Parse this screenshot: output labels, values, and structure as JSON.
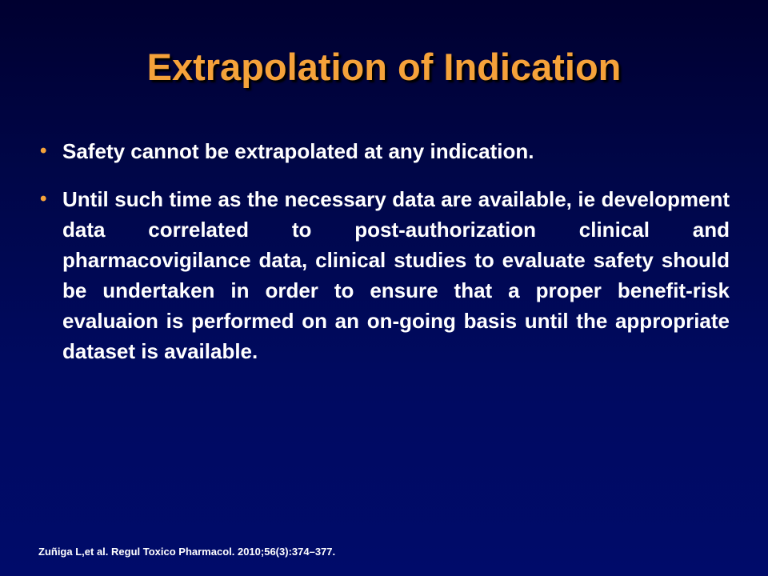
{
  "slide": {
    "title": "Extrapolation of Indication",
    "bullets": [
      {
        "text": "Safety cannot be extrapolated at any indication."
      },
      {
        "text": "Until such time as the necessary data are available, ie development data correlated to post-authorization clinical and pharmacovigilance data, clinical studies to evaluate safety should be undertaken in order to ensure that a proper benefit-risk evaluaion is performed on an on-going basis until the appropriate dataset is available."
      }
    ],
    "bullet_symbol": "•",
    "citation": "Zuñiga L,et al. Regul Toxico Pharmacol. 2010;56(3):374–377.",
    "colors": {
      "title": "#f5a23a",
      "bullet": "#f5a23a",
      "text": "#ffffff",
      "background": "#000a60"
    }
  }
}
